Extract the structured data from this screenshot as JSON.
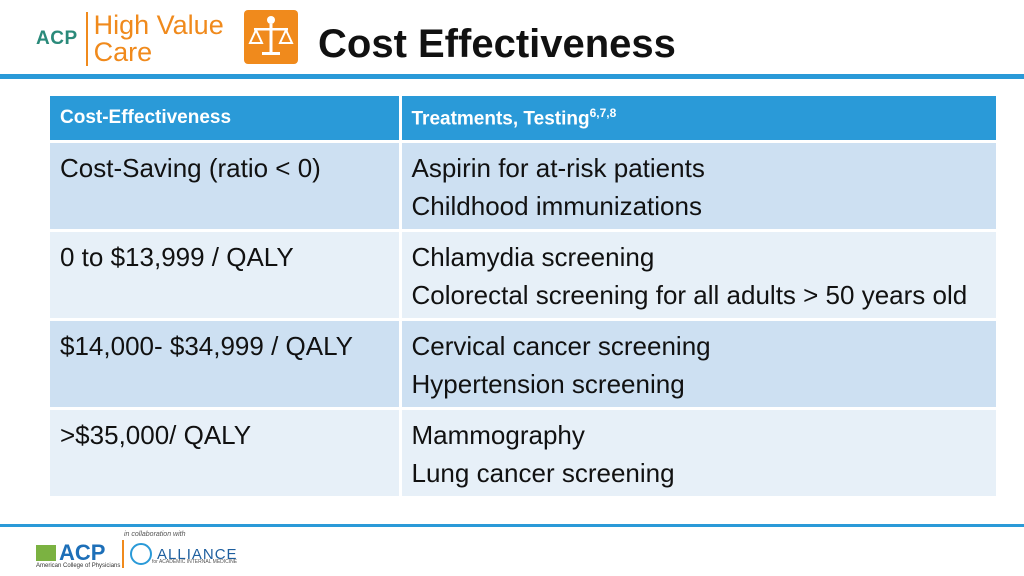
{
  "header": {
    "logo": {
      "org": "ACP",
      "brand_line1": "High Value",
      "brand_line2": "Care"
    },
    "title": "Cost Effectiveness"
  },
  "table": {
    "headers": {
      "col1": "Cost-Effectiveness",
      "col2": "Treatments, Testing",
      "col2_sup": "6,7,8"
    },
    "rows": [
      {
        "range": "Cost-Saving (ratio < 0)",
        "items": [
          "Aspirin for at-risk patients",
          "Childhood immunizations"
        ]
      },
      {
        "range": "0 to $13,999 / QALY",
        "items": [
          "Chlamydia screening",
          "Colorectal screening for all adults > 50 years old"
        ]
      },
      {
        "range": "$14,000- $34,999 / QALY",
        "items": [
          "Cervical cancer screening",
          "Hypertension screening"
        ]
      },
      {
        "range": ">$35,000/ QALY",
        "items": [
          "Mammography",
          "Lung cancer screening"
        ]
      }
    ]
  },
  "footer": {
    "acp_label": "ACP",
    "acp_sub": "American College of Physicians",
    "collab": "in collaboration with",
    "alliance_label": "ALLIANCE",
    "alliance_sub": "for ACADEMIC INTERNAL MEDICINE"
  },
  "colors": {
    "accent": "#2a9ad8",
    "orange": "#f08a1c",
    "row_dark": "#cde0f2",
    "row_light": "#e7f0f8"
  }
}
